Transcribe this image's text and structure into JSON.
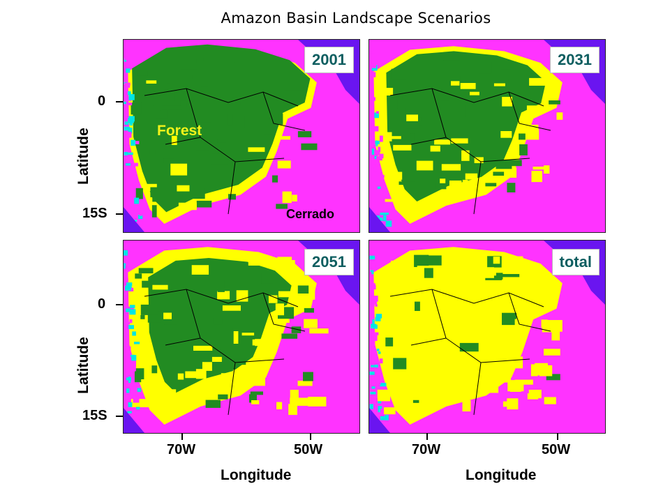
{
  "title": "Amazon Basin Landscape Scenarios",
  "panels": [
    {
      "label": "2001",
      "forest_share": 0.72
    },
    {
      "label": "2031",
      "forest_share": 0.55
    },
    {
      "label": "2051",
      "forest_share": 0.4
    },
    {
      "label": "total",
      "forest_share": 0.1
    }
  ],
  "annotations": {
    "forest": "Forest",
    "cerrado": "Cerrado"
  },
  "axes": {
    "ylabel": "Latitude",
    "xlabel": "Longitude",
    "yticks": [
      "0",
      "15S"
    ],
    "xticks": [
      "70W",
      "50W"
    ]
  },
  "legend_colors": {
    "ocean": "#6a15f0",
    "forest": "#228b22",
    "deforested": "#ffff00",
    "cerrado": "#ff33ff",
    "other": "#00e5e5"
  }
}
